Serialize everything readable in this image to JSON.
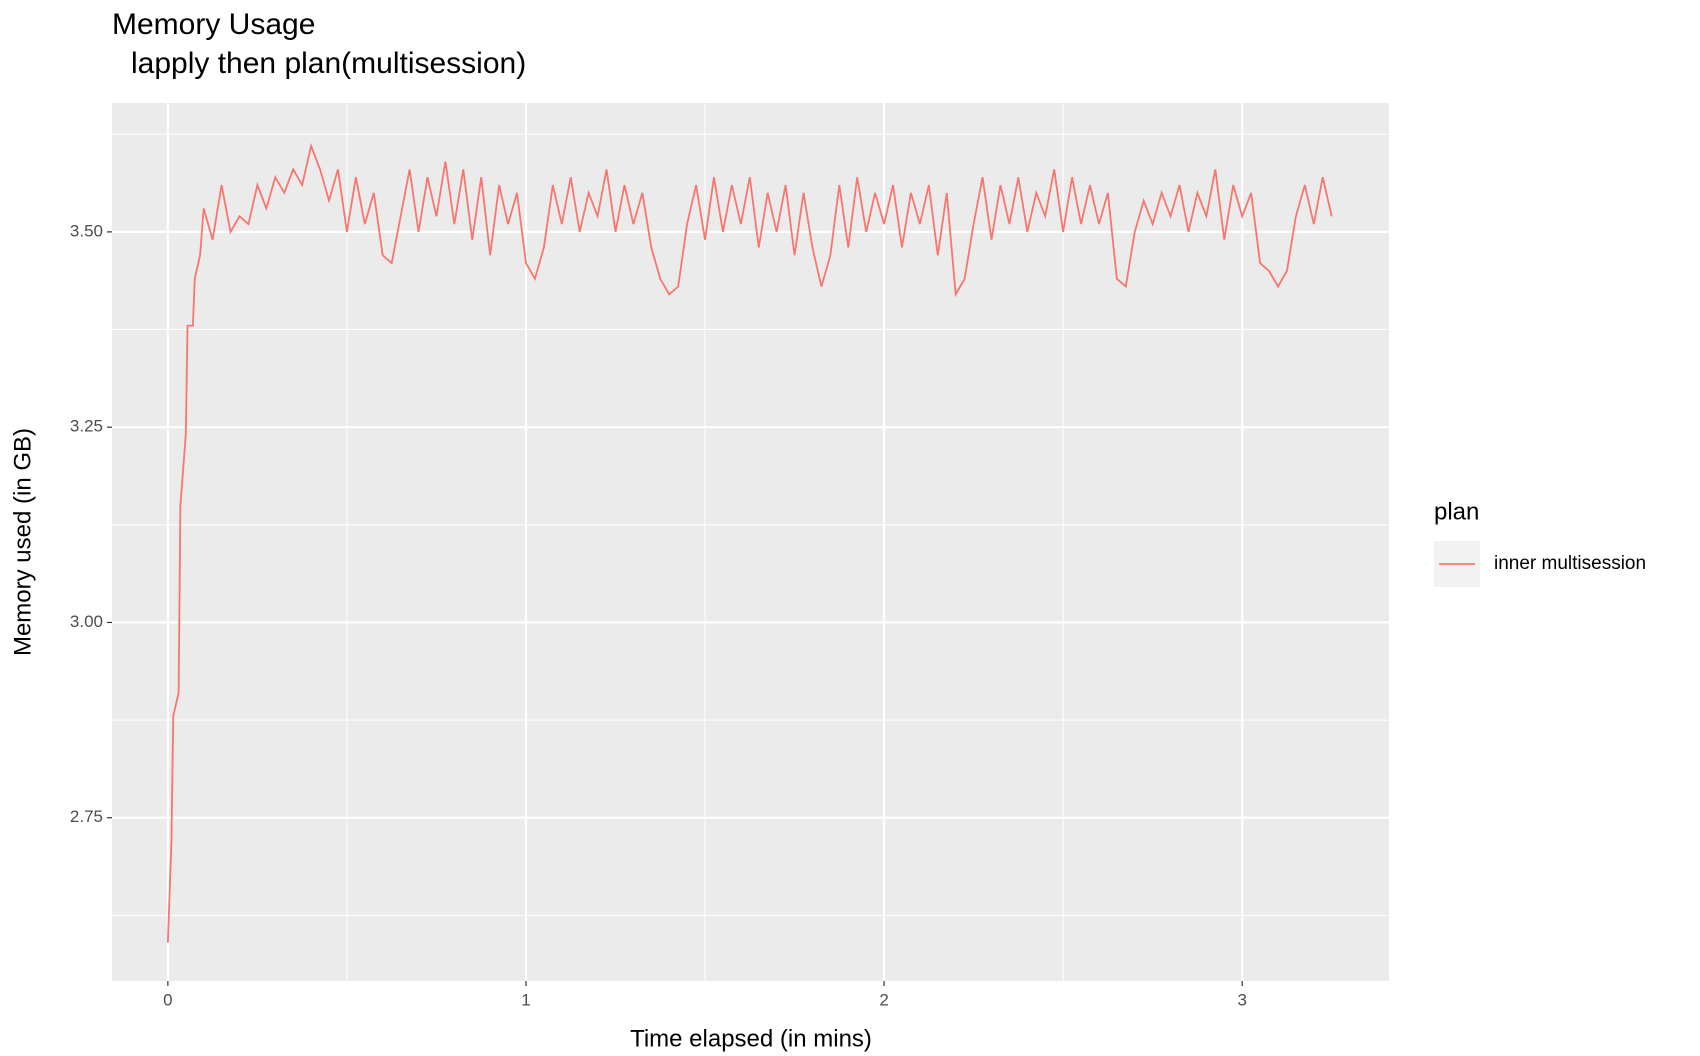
{
  "chart_data": {
    "type": "line",
    "title": "Memory Usage",
    "subtitle": "lapply then plan(multisession)",
    "x_label": "Time elapsed (in mins)",
    "y_label": "Memory used (in GB)",
    "legend_title": "plan",
    "legend_position": "right",
    "grid": true,
    "xlim": [
      -0.156,
      3.41
    ],
    "ylim": [
      2.541,
      3.665
    ],
    "xticks": [
      0,
      1,
      2,
      3
    ],
    "yticks": [
      2.75,
      {
        "value": 3,
        "label": "3.00"
      },
      3.25,
      {
        "value": 3.5,
        "label": "3.50"
      }
    ],
    "xminor": [
      0.5,
      1.5,
      2.5
    ],
    "yminor": [
      2.625,
      2.875,
      3.125,
      3.375,
      3.625
    ],
    "series": [
      {
        "name": "inner multisession",
        "color": "#F8766D",
        "x": [
          0,
          0.01,
          0.015,
          0.03,
          0.035,
          0.05,
          0.055,
          0.07,
          0.075,
          0.09,
          0.1,
          0.125,
          0.15,
          0.175,
          0.2,
          0.225,
          0.25,
          0.275,
          0.3,
          0.325,
          0.35,
          0.375,
          0.4,
          0.425,
          0.45,
          0.475,
          0.5,
          0.525,
          0.55,
          0.575,
          0.6,
          0.625,
          0.65,
          0.675,
          0.7,
          0.725,
          0.75,
          0.775,
          0.8,
          0.825,
          0.85,
          0.875,
          0.9,
          0.925,
          0.95,
          0.975,
          1,
          1.025,
          1.05,
          1.075,
          1.1,
          1.125,
          1.15,
          1.175,
          1.2,
          1.225,
          1.25,
          1.275,
          1.3,
          1.325,
          1.35,
          1.375,
          1.4,
          1.425,
          1.45,
          1.475,
          1.5,
          1.525,
          1.55,
          1.575,
          1.6,
          1.625,
          1.65,
          1.675,
          1.7,
          1.725,
          1.75,
          1.775,
          1.8,
          1.825,
          1.85,
          1.875,
          1.9,
          1.925,
          1.95,
          1.975,
          2,
          2.025,
          2.05,
          2.075,
          2.1,
          2.125,
          2.15,
          2.175,
          2.2,
          2.225,
          2.25,
          2.275,
          2.3,
          2.325,
          2.35,
          2.375,
          2.4,
          2.425,
          2.45,
          2.475,
          2.5,
          2.525,
          2.55,
          2.575,
          2.6,
          2.625,
          2.65,
          2.675,
          2.7,
          2.725,
          2.75,
          2.775,
          2.8,
          2.825,
          2.85,
          2.875,
          2.9,
          2.925,
          2.95,
          2.975,
          3,
          3.025,
          3.05,
          3.075,
          3.1,
          3.125,
          3.15,
          3.175,
          3.2,
          3.225,
          3.25
        ],
        "values": [
          2.59,
          2.72,
          2.88,
          2.91,
          3.15,
          3.24,
          3.38,
          3.38,
          3.44,
          3.47,
          3.53,
          3.49,
          3.56,
          3.5,
          3.52,
          3.51,
          3.56,
          3.53,
          3.57,
          3.55,
          3.58,
          3.56,
          3.61,
          3.58,
          3.54,
          3.58,
          3.5,
          3.57,
          3.51,
          3.55,
          3.47,
          3.46,
          3.52,
          3.58,
          3.5,
          3.57,
          3.52,
          3.59,
          3.51,
          3.58,
          3.49,
          3.57,
          3.47,
          3.56,
          3.51,
          3.55,
          3.46,
          3.44,
          3.48,
          3.56,
          3.51,
          3.57,
          3.5,
          3.55,
          3.52,
          3.58,
          3.5,
          3.56,
          3.51,
          3.55,
          3.48,
          3.44,
          3.42,
          3.43,
          3.51,
          3.56,
          3.49,
          3.57,
          3.5,
          3.56,
          3.51,
          3.57,
          3.48,
          3.55,
          3.5,
          3.56,
          3.47,
          3.55,
          3.48,
          3.43,
          3.47,
          3.56,
          3.48,
          3.57,
          3.5,
          3.55,
          3.51,
          3.56,
          3.48,
          3.55,
          3.51,
          3.56,
          3.47,
          3.55,
          3.42,
          3.44,
          3.51,
          3.57,
          3.49,
          3.56,
          3.51,
          3.57,
          3.5,
          3.55,
          3.52,
          3.58,
          3.5,
          3.57,
          3.51,
          3.56,
          3.51,
          3.55,
          3.44,
          3.43,
          3.5,
          3.54,
          3.51,
          3.55,
          3.52,
          3.56,
          3.5,
          3.55,
          3.52,
          3.58,
          3.49,
          3.56,
          3.52,
          3.55,
          3.46,
          3.45,
          3.43,
          3.45,
          3.52,
          3.56,
          3.51,
          3.57,
          3.52
        ]
      }
    ]
  }
}
